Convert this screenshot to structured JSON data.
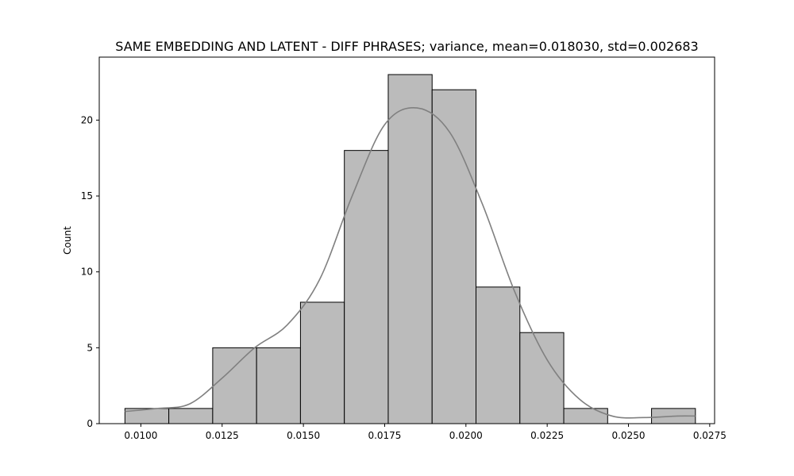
{
  "chart_data": {
    "type": "bar",
    "subtype": "histogram-with-kde",
    "title": "SAME EMBEDDING AND LATENT - DIFF PHRASES; variance, mean=0.018030, std=0.002683",
    "xlabel": "",
    "ylabel": "Count",
    "xlim": [
      0.00872,
      0.02765
    ],
    "ylim": [
      0,
      24.15
    ],
    "bin_edges": [
      0.00951,
      0.01086,
      0.01221,
      0.01356,
      0.01491,
      0.01626,
      0.01761,
      0.01896,
      0.02031,
      0.02166,
      0.02301,
      0.02436,
      0.02571,
      0.02706
    ],
    "counts": [
      1,
      1,
      5,
      5,
      8,
      18,
      23,
      22,
      9,
      6,
      1,
      0,
      1
    ],
    "kde": {
      "x": [
        0.00951,
        0.0105,
        0.0115,
        0.0125,
        0.0135,
        0.0145,
        0.0155,
        0.0165,
        0.0175,
        0.0185,
        0.0195,
        0.0205,
        0.0215,
        0.0225,
        0.0235,
        0.0245,
        0.0255,
        0.0265,
        0.02706
      ],
      "y": [
        0.8,
        1.0,
        1.3,
        3.0,
        5.0,
        6.5,
        9.5,
        15.0,
        19.7,
        20.8,
        19.2,
        14.5,
        8.7,
        4.2,
        1.6,
        0.5,
        0.4,
        0.5,
        0.5
      ]
    },
    "xticks": [
      0.01,
      0.0125,
      0.015,
      0.0175,
      0.02,
      0.0225,
      0.025,
      0.0275
    ],
    "xtick_labels": [
      "0.0100",
      "0.0125",
      "0.0150",
      "0.0175",
      "0.0200",
      "0.0225",
      "0.0250",
      "0.0275"
    ],
    "yticks": [
      0,
      5,
      10,
      15,
      20
    ],
    "ytick_labels": [
      "0",
      "5",
      "10",
      "15",
      "20"
    ],
    "grid": false,
    "colors": {
      "bar_fill": "#bbbbbb",
      "bar_edge": "#000000",
      "kde_line": "#808080"
    }
  }
}
